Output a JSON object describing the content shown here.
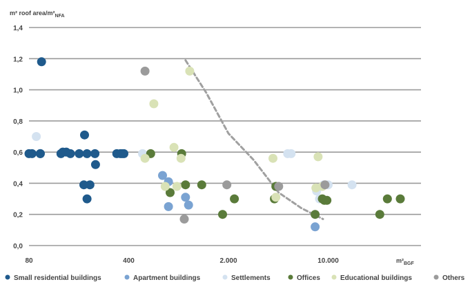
{
  "chart_data": {
    "type": "scatter",
    "ylabel_main": "m² roof area/m²",
    "ylabel_sub": "NFA",
    "xlabel_main": "m²",
    "xlabel_sub": "BGF",
    "x_scale": "log",
    "xlim": [
      80,
      40000
    ],
    "ylim": [
      0,
      1.4
    ],
    "x_ticks": [
      80,
      400,
      2000,
      10000
    ],
    "x_tick_labels": [
      "80",
      "400",
      "2.000",
      "10.000"
    ],
    "y_ticks": [
      0,
      0.2,
      0.4,
      0.6,
      0.8,
      1.0,
      1.2,
      1.4
    ],
    "y_tick_labels": [
      "0,0",
      "0,2",
      "0,4",
      "0,6",
      "0,8",
      "1,0",
      "1,2",
      "1,4"
    ],
    "grid": "horizontal",
    "legend_position": "bottom",
    "series": [
      {
        "name": "Small residential buildings",
        "color": "#1f5a8c",
        "points": [
          [
            80,
            0.59
          ],
          [
            84,
            0.59
          ],
          [
            96,
            0.59
          ],
          [
            98,
            1.18
          ],
          [
            96,
            0.59
          ],
          [
            134,
            0.59
          ],
          [
            138,
            0.6
          ],
          [
            146,
            0.6
          ],
          [
            156,
            0.59
          ],
          [
            180,
            0.59
          ],
          [
            194,
            0.39
          ],
          [
            196,
            0.71
          ],
          [
            204,
            0.59
          ],
          [
            204,
            0.3
          ],
          [
            214,
            0.39
          ],
          [
            234,
            0.52
          ],
          [
            232,
            0.59
          ],
          [
            330,
            0.59
          ],
          [
            350,
            0.59
          ],
          [
            360,
            0.59
          ],
          [
            370,
            0.59
          ]
        ]
      },
      {
        "name": "Apartment buildings",
        "color": "#7aa3d2",
        "points": [
          [
            690,
            0.45
          ],
          [
            760,
            0.41
          ],
          [
            760,
            0.25
          ],
          [
            1000,
            0.31
          ],
          [
            1050,
            0.26
          ],
          [
            8100,
            0.12
          ]
        ]
      },
      {
        "name": "Settlements",
        "color": "#d4e2f0",
        "points": [
          [
            90,
            0.7
          ],
          [
            500,
            0.59
          ],
          [
            5200,
            0.59
          ],
          [
            5500,
            0.59
          ],
          [
            8300,
            0.35
          ],
          [
            8700,
            0.3
          ],
          [
            9300,
            0.39
          ],
          [
            10000,
            0.39
          ],
          [
            14700,
            0.39
          ]
        ]
      },
      {
        "name": "Offices",
        "color": "#5a7b3a",
        "points": [
          [
            570,
            0.59
          ],
          [
            780,
            0.34
          ],
          [
            940,
            0.59
          ],
          [
            1000,
            0.39
          ],
          [
            1300,
            0.39
          ],
          [
            1820,
            0.2
          ],
          [
            2200,
            0.3
          ],
          [
            4200,
            0.3
          ],
          [
            4300,
            0.38
          ],
          [
            8100,
            0.2
          ],
          [
            9100,
            0.3
          ],
          [
            9400,
            0.29
          ],
          [
            9800,
            0.29
          ],
          [
            23000,
            0.2
          ],
          [
            26000,
            0.3
          ],
          [
            32000,
            0.3
          ]
        ]
      },
      {
        "name": "Educational buildings",
        "color": "#d9e2b6",
        "points": [
          [
            520,
            0.56
          ],
          [
            600,
            0.91
          ],
          [
            720,
            0.38
          ],
          [
            830,
            0.63
          ],
          [
            870,
            0.38
          ],
          [
            930,
            0.56
          ],
          [
            1070,
            1.12
          ],
          [
            4100,
            0.56
          ],
          [
            4300,
            0.31
          ],
          [
            8200,
            0.37
          ],
          [
            8500,
            0.57
          ],
          [
            9100,
            0.38
          ]
        ]
      },
      {
        "name": "Others",
        "color": "#9b9b9b",
        "points": [
          [
            520,
            1.12
          ],
          [
            980,
            0.17
          ],
          [
            1950,
            0.39
          ],
          [
            4500,
            0.38
          ],
          [
            9500,
            0.39
          ]
        ]
      }
    ],
    "trend_line": {
      "style": "dashed",
      "color": "#a0a0a0",
      "points": [
        [
          1000,
          1.19
        ],
        [
          1400,
          0.98
        ],
        [
          2000,
          0.72
        ],
        [
          3000,
          0.55
        ],
        [
          4500,
          0.34
        ],
        [
          6500,
          0.24
        ],
        [
          9200,
          0.17
        ]
      ]
    }
  }
}
